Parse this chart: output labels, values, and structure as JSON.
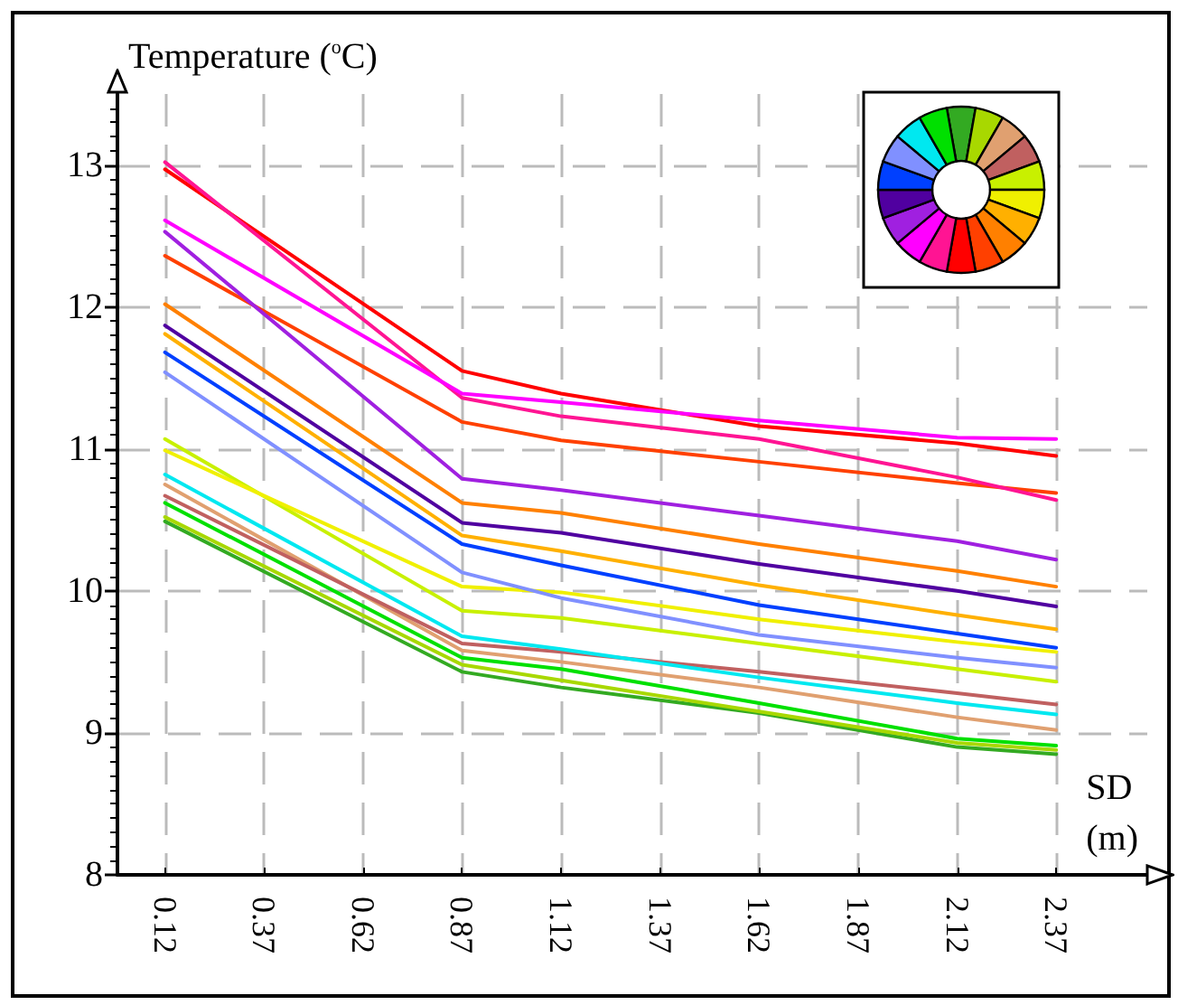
{
  "chart_data": {
    "type": "line",
    "xlabel": "SD (m)",
    "ylabel": "Temperature ($^{o}$C)",
    "x": [
      0.12,
      0.87,
      1.12,
      1.62,
      2.12,
      2.37
    ],
    "xlim": [
      0,
      2.6
    ],
    "xticks": [
      0.12,
      0.37,
      0.62,
      0.87,
      1.12,
      1.37,
      1.62,
      1.87,
      2.12,
      2.37
    ],
    "ylim": [
      8,
      13.5
    ],
    "yticks": [
      8,
      9,
      10,
      11,
      12,
      13
    ],
    "grid": true,
    "marker": "none",
    "line_style": "solid",
    "series": [
      {
        "color": "#33aa22",
        "values": [
          10.49,
          9.43,
          9.32,
          9.14,
          8.9,
          8.85
        ]
      },
      {
        "color": "#a8d800",
        "values": [
          10.52,
          9.48,
          9.37,
          9.15,
          8.93,
          8.88
        ]
      },
      {
        "color": "#e0a070",
        "values": [
          10.75,
          9.58,
          9.5,
          9.32,
          9.11,
          9.02
        ]
      },
      {
        "color": "#c06060",
        "values": [
          10.67,
          9.63,
          9.57,
          9.43,
          9.28,
          9.2
        ]
      },
      {
        "color": "#c8f000",
        "values": [
          11.07,
          9.86,
          9.81,
          9.63,
          9.45,
          9.36
        ]
      },
      {
        "color": "#f0f000",
        "values": [
          10.99,
          10.03,
          9.99,
          9.8,
          9.64,
          9.57
        ]
      },
      {
        "color": "#ffb000",
        "values": [
          11.81,
          10.39,
          10.28,
          10.04,
          9.83,
          9.73
        ]
      },
      {
        "color": "#ff8000",
        "values": [
          12.02,
          10.62,
          10.55,
          10.33,
          10.14,
          10.03
        ]
      },
      {
        "color": "#ff4000",
        "values": [
          12.36,
          11.19,
          11.06,
          10.91,
          10.76,
          10.69
        ]
      },
      {
        "color": "#ff0000",
        "values": [
          12.97,
          11.55,
          11.39,
          11.16,
          11.04,
          10.95
        ]
      },
      {
        "color": "#ff1493",
        "values": [
          13.02,
          11.36,
          11.23,
          11.07,
          10.8,
          10.64
        ]
      },
      {
        "color": "#ff00ff",
        "values": [
          12.61,
          11.39,
          11.33,
          11.2,
          11.08,
          11.07
        ]
      },
      {
        "color": "#a020e0",
        "values": [
          12.53,
          10.79,
          10.71,
          10.53,
          10.35,
          10.22
        ]
      },
      {
        "color": "#5000a0",
        "values": [
          11.87,
          10.48,
          10.41,
          10.19,
          10.0,
          9.89
        ]
      },
      {
        "color": "#0040ff",
        "values": [
          11.68,
          10.33,
          10.18,
          9.9,
          9.7,
          9.6
        ]
      },
      {
        "color": "#8090ff",
        "values": [
          11.54,
          10.13,
          9.95,
          9.69,
          9.53,
          9.46
        ]
      },
      {
        "color": "#00e8f0",
        "values": [
          10.82,
          9.68,
          9.59,
          9.39,
          9.21,
          9.13
        ]
      },
      {
        "color": "#00e000",
        "values": [
          10.62,
          9.53,
          9.45,
          9.21,
          8.96,
          8.91
        ]
      }
    ]
  }
}
